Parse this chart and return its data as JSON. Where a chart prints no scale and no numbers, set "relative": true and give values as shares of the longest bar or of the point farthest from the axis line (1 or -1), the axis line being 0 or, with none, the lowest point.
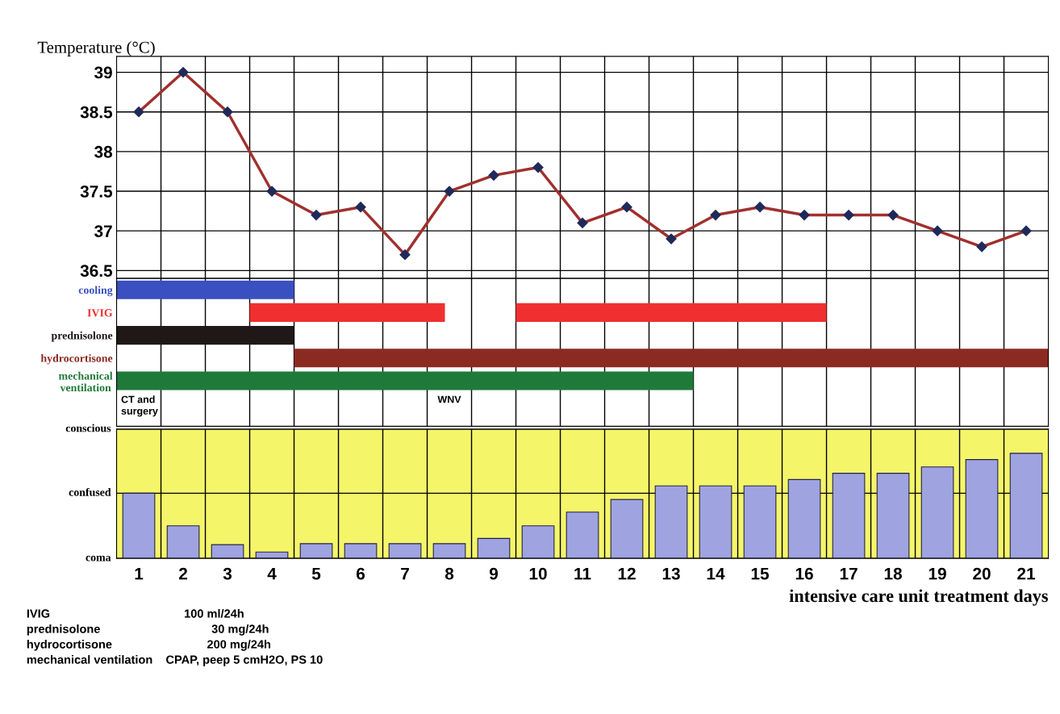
{
  "chart_data": [
    {
      "type": "line",
      "ylabel": "Temperature (°C)",
      "categories": [
        "1",
        "2",
        "3",
        "4",
        "5",
        "6",
        "7",
        "8",
        "9",
        "10",
        "11",
        "12",
        "13",
        "14",
        "15",
        "16",
        "17",
        "18",
        "19",
        "20",
        "21"
      ],
      "series": [
        {
          "color": "#a0302e",
          "values": [
            38.5,
            39,
            38.5,
            37.5,
            37.2,
            37.3,
            36.7,
            37.5,
            37.7,
            37.8,
            37.1,
            37.3,
            36.9,
            37.2,
            37.3,
            37.2,
            37.2,
            37.2,
            37.0,
            36.8,
            37.0
          ]
        }
      ],
      "marker": "diamond",
      "ylim": [
        36.4,
        39.2
      ],
      "yticks": [
        36.5,
        37,
        37.5,
        38,
        38.5,
        39
      ],
      "grid": true,
      "tick_labels": "y"
    },
    {
      "type": "bar",
      "orientation": "horizontal",
      "categories": [
        "cooling",
        "IVIG",
        "prednisolone",
        "hydrocortisone",
        "mechanical\nventilation"
      ],
      "series": [
        {
          "colors": [
            "#3a4fc0",
            "#f03030",
            "#201818",
            "#8b2a20",
            "#1f7a3a"
          ],
          "base": [
            0.5,
            3.5,
            0.5,
            4.5,
            0.5
          ],
          "values": [
            4,
            4.4,
            4,
            17,
            13
          ]
        },
        {
          "colors": [
            null,
            "#f03030",
            null,
            null,
            null
          ],
          "base": [
            null,
            9.5,
            null,
            null,
            null
          ],
          "values": [
            null,
            7,
            null,
            null,
            null
          ]
        }
      ],
      "xlim": [
        0.5,
        21.5
      ],
      "xticks": [
        1,
        2,
        3,
        4,
        5,
        6,
        7,
        8,
        9,
        10,
        11,
        12,
        13,
        14,
        15,
        16,
        17,
        18,
        19,
        20,
        21
      ],
      "tick_labels": "y",
      "annotations": [
        "CT and\nsurgery",
        "WNV"
      ]
    },
    {
      "type": "bar",
      "relative": true,
      "categories": [
        "1",
        "2",
        "3",
        "4",
        "5",
        "6",
        "7",
        "8",
        "9",
        "10",
        "11",
        "12",
        "13",
        "14",
        "15",
        "16",
        "17",
        "18",
        "19",
        "20",
        "21"
      ],
      "series": [
        {
          "color": "#9fa3e0",
          "values": [
            0.62,
            0.31,
            0.13,
            0.06,
            0.14,
            0.14,
            0.14,
            0.14,
            0.19,
            0.31,
            0.44,
            0.56,
            0.69,
            0.69,
            0.69,
            0.75,
            0.81,
            0.81,
            0.87,
            0.94,
            1
          ]
        }
      ],
      "ref_lines": [
        {
          "axis": "y",
          "value": 0,
          "label": "coma"
        },
        {
          "axis": "y",
          "value": 0.62,
          "label": "confused"
        },
        {
          "axis": "y",
          "value": 1.23,
          "label": "conscious"
        }
      ],
      "bands": [
        {
          "axis": "y",
          "from": 0,
          "to": 1.23,
          "color": "#f5f56a"
        }
      ],
      "xlabel": "intensive care unit treatment days",
      "annotations": [
        "IVIG                                         100 ml/24h",
        "prednisolone                                  30 mg/24h",
        "hydrocortisone                             200 mg/24h",
        "mechanical ventilation    CPAP, peep 5 cmH2O, PS 10"
      ]
    }
  ]
}
